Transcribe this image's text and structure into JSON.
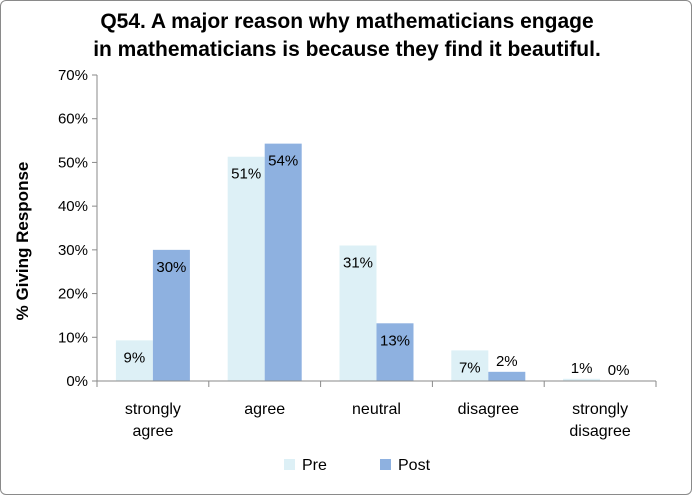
{
  "chart_data": {
    "type": "bar",
    "title_lines": [
      "Q54. A major reason why mathematicians engage",
      "in mathematicians is because they find it beautiful."
    ],
    "xlabel": "",
    "ylabel": "% Giving Response",
    "categories": [
      [
        "strongly",
        "agree"
      ],
      [
        "agree"
      ],
      [
        "neutral"
      ],
      [
        "disagree"
      ],
      [
        "strongly",
        "disagree"
      ]
    ],
    "series": [
      {
        "name": "Pre",
        "color": "#ddf0f6",
        "values": [
          9.3,
          51.3,
          31.0,
          7.0,
          0.5
        ],
        "labels": [
          "9%",
          "51%",
          "31%",
          "7%",
          "1%"
        ]
      },
      {
        "name": "Post",
        "color": "#8eb1e0",
        "values": [
          30.0,
          54.3,
          13.2,
          2.1,
          0.0
        ],
        "labels": [
          "30%",
          "54%",
          "13%",
          "2%",
          "0%"
        ]
      }
    ],
    "ylim": [
      0,
      70
    ],
    "yticks": [
      0,
      10,
      20,
      30,
      40,
      50,
      60,
      70
    ],
    "ytick_labels": [
      "0%",
      "10%",
      "20%",
      "30%",
      "40%",
      "50%",
      "60%",
      "70%"
    ],
    "grid": false,
    "legend_position": "bottom"
  }
}
